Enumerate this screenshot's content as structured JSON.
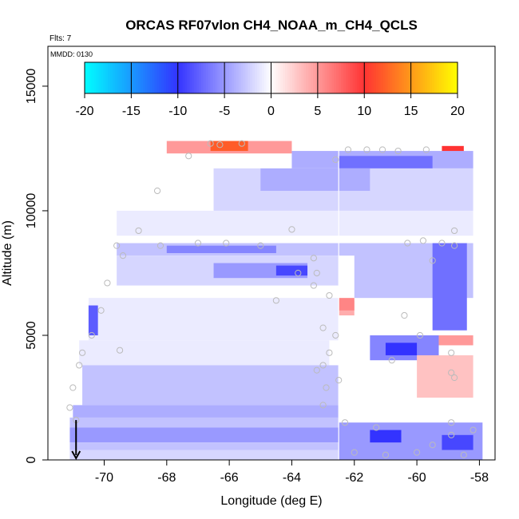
{
  "chart_data": {
    "type": "heatmap",
    "title": "ORCAS RF07vlon CH4_NOAA_m_CH4_QCLS",
    "annotations": [
      "Flts: 7",
      "MMDD: 0130"
    ],
    "xlabel": "Longitude (deg E)",
    "ylabel": "Altitude (m)",
    "xlim": [
      -71.8,
      -57.5
    ],
    "ylim": [
      0,
      16600
    ],
    "xticks": [
      -70,
      -68,
      -66,
      -64,
      -62,
      -60,
      -58
    ],
    "yticks": [
      0,
      5000,
      10000,
      15000
    ],
    "grid": false,
    "colorbar": {
      "placement": "top-inside",
      "ticks": [
        -20,
        -15,
        -10,
        -5,
        0,
        5,
        10,
        15,
        20
      ],
      "range": [
        -20,
        20
      ],
      "colors": [
        "#00ffff",
        "#3333ff",
        "#ffffff",
        "#ff3333",
        "#ffff00"
      ]
    },
    "marker": {
      "type": "arrow-down",
      "x": -70.9,
      "y": 600
    },
    "cells": [
      {
        "x0": -68.0,
        "x1": -64.0,
        "y0": 12300,
        "y1": 12800,
        "v": 5
      },
      {
        "x0": -66.6,
        "x1": -65.4,
        "y0": 12400,
        "y1": 12800,
        "v": 12
      },
      {
        "x0": -59.2,
        "x1": -58.5,
        "y0": 12300,
        "y1": 12600,
        "v": 10
      },
      {
        "x0": -64.0,
        "x1": -58.2,
        "y0": 11700,
        "y1": 12400,
        "v": -4
      },
      {
        "x0": -62.5,
        "x1": -59.5,
        "y0": 11700,
        "y1": 12200,
        "v": -7
      },
      {
        "x0": -66.5,
        "x1": -58.2,
        "y0": 10000,
        "y1": 11700,
        "v": -2
      },
      {
        "x0": -65.0,
        "x1": -61.5,
        "y0": 10800,
        "y1": 11700,
        "v": -4
      },
      {
        "x0": -69.6,
        "x1": -58.2,
        "y0": 9000,
        "y1": 10000,
        "v": -1
      },
      {
        "x0": -69.6,
        "x1": -61.0,
        "y0": 8200,
        "y1": 8700,
        "v": -3
      },
      {
        "x0": -68.0,
        "x1": -64.5,
        "y0": 8300,
        "y1": 8600,
        "v": -6
      },
      {
        "x0": -69.6,
        "x1": -62.5,
        "y0": 7000,
        "y1": 8200,
        "v": -2
      },
      {
        "x0": -66.5,
        "x1": -63.5,
        "y0": 7300,
        "y1": 7900,
        "v": -5
      },
      {
        "x0": -64.5,
        "x1": -63.5,
        "y0": 7400,
        "y1": 7800,
        "v": -9
      },
      {
        "x0": -62.0,
        "x1": -58.2,
        "y0": 6500,
        "y1": 8700,
        "v": -3
      },
      {
        "x0": -59.5,
        "x1": -58.4,
        "y0": 5200,
        "y1": 8700,
        "v": -7
      },
      {
        "x0": -66.0,
        "x1": -62.0,
        "y0": 5800,
        "y1": 6400,
        "v": 4
      },
      {
        "x0": -62.5,
        "x1": -62.0,
        "y0": 6000,
        "y1": 6500,
        "v": 6
      },
      {
        "x0": -70.5,
        "x1": -62.5,
        "y0": 4800,
        "y1": 6500,
        "v": -1
      },
      {
        "x0": -70.5,
        "x1": -70.2,
        "y0": 5000,
        "y1": 6200,
        "v": -8
      },
      {
        "x0": -61.5,
        "x1": -59.3,
        "y0": 4000,
        "y1": 5000,
        "v": -6
      },
      {
        "x0": -61.0,
        "x1": -60.0,
        "y0": 4200,
        "y1": 4700,
        "v": -10
      },
      {
        "x0": -59.3,
        "x1": -58.2,
        "y0": 4600,
        "y1": 5000,
        "v": 5
      },
      {
        "x0": -60.0,
        "x1": -58.2,
        "y0": 2500,
        "y1": 4200,
        "v": 3
      },
      {
        "x0": -70.8,
        "x1": -62.8,
        "y0": 3800,
        "y1": 4800,
        "v": -1
      },
      {
        "x0": -70.7,
        "x1": -62.5,
        "y0": 2200,
        "y1": 3800,
        "v": -3
      },
      {
        "x0": -71.0,
        "x1": -62.5,
        "y0": 1700,
        "y1": 2200,
        "v": -4
      },
      {
        "x0": -71.1,
        "x1": -62.5,
        "y0": 1300,
        "y1": 1700,
        "v": -3
      },
      {
        "x0": -71.1,
        "x1": -62.5,
        "y0": 700,
        "y1": 1300,
        "v": -5
      },
      {
        "x0": -71.1,
        "x1": -62.5,
        "y0": 400,
        "y1": 700,
        "v": -3
      },
      {
        "x0": -71.1,
        "x1": -62.5,
        "y0": 0,
        "y1": 400,
        "v": -2
      },
      {
        "x0": -62.5,
        "x1": -57.9,
        "y0": 0,
        "y1": 1500,
        "v": -5
      },
      {
        "x0": -61.5,
        "x1": -60.5,
        "y0": 700,
        "y1": 1200,
        "v": -10
      },
      {
        "x0": -59.2,
        "x1": -58.2,
        "y0": 400,
        "y1": 1000,
        "v": -9
      }
    ],
    "points": [
      [
        -66.6,
        12700
      ],
      [
        -66.3,
        12650
      ],
      [
        -65.6,
        12700
      ],
      [
        -62.2,
        12450
      ],
      [
        -61.6,
        12450
      ],
      [
        -61.1,
        12450
      ],
      [
        -60.6,
        12400
      ],
      [
        -59.7,
        12450
      ],
      [
        -62.6,
        12050
      ],
      [
        -67.3,
        12200
      ],
      [
        -68.3,
        10800
      ],
      [
        -69.6,
        8600
      ],
      [
        -68.9,
        9200
      ],
      [
        -69.4,
        8200
      ],
      [
        -68.2,
        8600
      ],
      [
        -67.0,
        8700
      ],
      [
        -66.1,
        8700
      ],
      [
        -65.0,
        8600
      ],
      [
        -64.0,
        9250
      ],
      [
        -63.3,
        8100
      ],
      [
        -63.8,
        7500
      ],
      [
        -63.2,
        7500
      ],
      [
        -63.3,
        7000
      ],
      [
        -62.8,
        6600
      ],
      [
        -69.9,
        7100
      ],
      [
        -70.1,
        6000
      ],
      [
        -70.4,
        5000
      ],
      [
        -70.7,
        4300
      ],
      [
        -70.8,
        3800
      ],
      [
        -71.0,
        2900
      ],
      [
        -63.0,
        5300
      ],
      [
        -62.6,
        5000
      ],
      [
        -62.8,
        4300
      ],
      [
        -63.0,
        3800
      ],
      [
        -63.2,
        3600
      ],
      [
        -62.9,
        2900
      ],
      [
        -62.5,
        3200
      ],
      [
        -63.0,
        2200
      ],
      [
        -62.3,
        1500
      ],
      [
        -61.3,
        1300
      ],
      [
        -60.8,
        4000
      ],
      [
        -60.4,
        5800
      ],
      [
        -59.9,
        5000
      ],
      [
        -60.3,
        8700
      ],
      [
        -59.8,
        8800
      ],
      [
        -59.5,
        8000
      ],
      [
        -59.2,
        8700
      ],
      [
        -58.8,
        9200
      ],
      [
        -58.8,
        8600
      ],
      [
        -58.9,
        4300
      ],
      [
        -58.9,
        3500
      ],
      [
        -58.8,
        3300
      ],
      [
        -58.9,
        1500
      ],
      [
        -58.2,
        1200
      ],
      [
        -58.9,
        1000
      ],
      [
        -60.0,
        300
      ],
      [
        -61.0,
        200
      ],
      [
        -62.0,
        300
      ],
      [
        -59.5,
        600
      ],
      [
        -58.5,
        200
      ],
      [
        -64.5,
        6400
      ],
      [
        -69.5,
        4400
      ],
      [
        -70.9,
        1600
      ],
      [
        -71.1,
        2100
      ]
    ]
  }
}
